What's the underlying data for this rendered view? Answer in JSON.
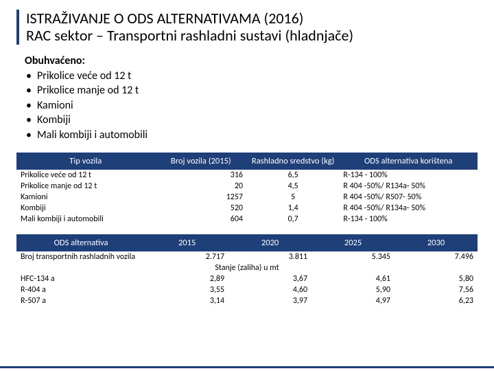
{
  "title": {
    "line1": "ISTRAŽIVANJE O ODS ALTERNATIVAMA (2016)",
    "line2": "RAC sektor – Transportni rashladni sustavi (hladnjače)"
  },
  "coverage": {
    "label": "Obuhvaćeno:",
    "items": [
      "Prikolice veće od 12 t",
      "Prikolice manje od 12 t",
      "Kamioni",
      "Kombiji",
      "Mali kombiji i automobili"
    ]
  },
  "table1": {
    "headers": [
      "Tip vozila",
      "Broj vozila (2015)",
      "Rashladno sredstvo (kg)",
      "ODS alternativa korištena"
    ],
    "col_widths": [
      "30%",
      "20%",
      "20%",
      "30%"
    ],
    "rows": [
      [
        "Prikolice veće od 12 t",
        "316",
        "6,5",
        "R-134 - 100%"
      ],
      [
        "Prikolice manje od 12 t",
        "20",
        "4,5",
        "R 404 -50%/ R134a- 50%"
      ],
      [
        "Kamioni",
        "1257",
        "5",
        "R 404 -50%/ R507- 50%"
      ],
      [
        "Kombiji",
        "520",
        "1,4",
        "R 404 -50%/ R134a- 50%"
      ],
      [
        "Mali kombiji i automobili",
        "604",
        "0,7",
        "R-134 - 100%"
      ]
    ],
    "aligns": [
      "left",
      "right",
      "center",
      "left"
    ]
  },
  "table2": {
    "headers": [
      "ODS alternativa",
      "2015",
      "2020",
      "2025",
      "2030"
    ],
    "col_widths": [
      "28%",
      "18%",
      "18%",
      "18%",
      "18%"
    ],
    "row_count_label": "Broj transportnih rashladnih vozila",
    "row_count_vals": [
      "2.717",
      "3.811",
      "5.345",
      "7.496"
    ],
    "subheader": "Stanje (zaliha) u mt",
    "rows": [
      [
        "HFC-134 a",
        "2,89",
        "3,67",
        "4,61",
        "5,80"
      ],
      [
        "R-404 a",
        "3,55",
        "4,60",
        "5,90",
        "7,56"
      ],
      [
        "R-507 a",
        "3,14",
        "3,97",
        "4,97",
        "6,23"
      ]
    ]
  },
  "colors": {
    "header_bg": "#1f3f78",
    "header_fg": "#ffffff"
  }
}
